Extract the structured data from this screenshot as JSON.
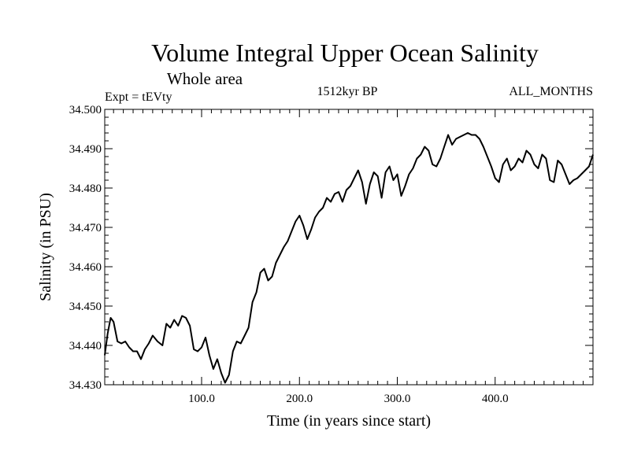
{
  "chart_data": {
    "type": "line",
    "title": "Volume Integral Upper Ocean Salinity",
    "subtitle": "Whole area",
    "experiment_label": "Expt = tEVty",
    "period_label": "1512kyr BP",
    "months_label": "ALL_MONTHS",
    "xlabel": "Time (in years since start)",
    "ylabel": "Salinity (in PSU)",
    "xlim": [
      1,
      500
    ],
    "ylim": [
      34.43,
      34.5
    ],
    "grid": false,
    "x_ticks": [
      100,
      200,
      300,
      400
    ],
    "x_tick_labels": [
      "100.0",
      "200.0",
      "300.0",
      "400.0"
    ],
    "y_ticks": [
      34.43,
      34.44,
      34.45,
      34.46,
      34.47,
      34.48,
      34.49,
      34.5
    ],
    "y_tick_labels": [
      "34.430",
      "34.440",
      "34.450",
      "34.460",
      "34.470",
      "34.480",
      "34.490",
      "34.500"
    ],
    "series": [
      {
        "name": "Salinity",
        "x": [
          1,
          4,
          7,
          10,
          14,
          18,
          22,
          26,
          30,
          34,
          38,
          42,
          46,
          50,
          55,
          60,
          64,
          68,
          72,
          76,
          80,
          84,
          88,
          92,
          96,
          100,
          104,
          108,
          112,
          116,
          120,
          124,
          128,
          132,
          136,
          140,
          144,
          148,
          152,
          156,
          160,
          164,
          168,
          172,
          176,
          180,
          184,
          188,
          192,
          196,
          200,
          204,
          208,
          212,
          216,
          220,
          224,
          228,
          232,
          236,
          240,
          244,
          248,
          252,
          256,
          260,
          264,
          268,
          272,
          276,
          280,
          284,
          288,
          292,
          296,
          300,
          304,
          308,
          312,
          316,
          320,
          324,
          328,
          332,
          336,
          340,
          344,
          348,
          352,
          356,
          360,
          364,
          368,
          372,
          376,
          380,
          384,
          388,
          392,
          396,
          400,
          404,
          408,
          412,
          416,
          420,
          424,
          428,
          432,
          436,
          440,
          444,
          448,
          452,
          456,
          460,
          464,
          468,
          472,
          476,
          480,
          484,
          488,
          492,
          496,
          500
        ],
        "values": [
          34.4375,
          34.443,
          34.447,
          34.446,
          34.441,
          34.4405,
          34.441,
          34.4395,
          34.4385,
          34.4385,
          34.4365,
          34.439,
          34.4405,
          34.4425,
          34.441,
          34.44,
          34.4455,
          34.4445,
          34.4465,
          34.445,
          34.4475,
          34.447,
          34.445,
          34.439,
          34.4385,
          34.4395,
          34.442,
          34.4375,
          34.434,
          34.4365,
          34.433,
          34.4305,
          34.4325,
          34.4385,
          34.441,
          34.4405,
          34.4425,
          34.4445,
          34.451,
          34.4535,
          34.4585,
          34.4595,
          34.4565,
          34.4575,
          34.461,
          34.463,
          34.465,
          34.4665,
          34.469,
          34.4715,
          34.473,
          34.4705,
          34.467,
          34.4695,
          34.4725,
          34.474,
          34.475,
          34.4775,
          34.4765,
          34.4785,
          34.479,
          34.4765,
          34.4795,
          34.4805,
          34.4825,
          34.4845,
          34.4815,
          34.476,
          34.481,
          34.484,
          34.483,
          34.4775,
          34.484,
          34.4855,
          34.482,
          34.4835,
          34.478,
          34.4805,
          34.4835,
          34.485,
          34.4875,
          34.4885,
          34.4905,
          34.4895,
          34.486,
          34.4855,
          34.4875,
          34.4905,
          34.4935,
          34.491,
          34.4925,
          34.493,
          34.4935,
          34.494,
          34.4935,
          34.4935,
          34.4925,
          34.4905,
          34.488,
          34.4855,
          34.4825,
          34.4815,
          34.486,
          34.4875,
          34.4845,
          34.4855,
          34.4875,
          34.4865,
          34.4895,
          34.4885,
          34.486,
          34.485,
          34.4885,
          34.4875,
          34.482,
          34.4815,
          34.487,
          34.486,
          34.4835,
          34.481,
          34.482,
          34.4825,
          34.4835,
          34.4845,
          34.4855,
          34.4885
        ]
      }
    ]
  }
}
